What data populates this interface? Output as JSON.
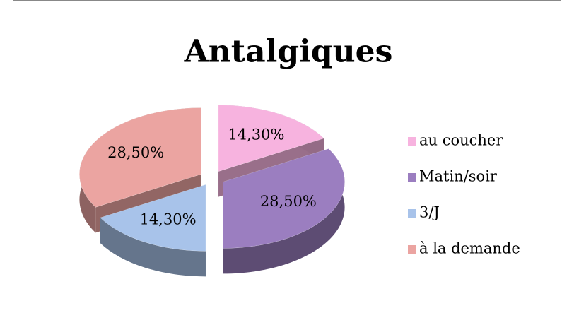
{
  "chart_data": {
    "type": "pie3d",
    "title": "Antalgiques",
    "categories": [
      "au coucher",
      "Matin/soir",
      "3/J",
      "à la demande"
    ],
    "values": [
      14.3,
      28.5,
      14.3,
      28.5
    ],
    "value_labels": [
      "14,30%",
      "28,50%",
      "14,30%",
      "28,50%"
    ],
    "colors": [
      "#f7b3df",
      "#9b7ec0",
      "#a8c3ea",
      "#eba4a1"
    ],
    "legend": "right"
  }
}
